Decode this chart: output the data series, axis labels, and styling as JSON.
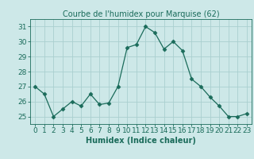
{
  "x": [
    0,
    1,
    2,
    3,
    4,
    5,
    6,
    7,
    8,
    9,
    10,
    11,
    12,
    13,
    14,
    15,
    16,
    17,
    18,
    19,
    20,
    21,
    22,
    23
  ],
  "y": [
    27,
    26.5,
    25,
    25.5,
    26,
    25.7,
    26.5,
    25.8,
    25.9,
    27,
    29.6,
    29.8,
    31.0,
    30.6,
    29.5,
    30.0,
    29.4,
    27.5,
    27.0,
    26.3,
    25.7,
    25.0,
    25.0,
    25.2
  ],
  "title": "Courbe de l'humidex pour Marquise (62)",
  "xlabel": "Humidex (Indice chaleur)",
  "ylabel": "",
  "ylim": [
    24.5,
    31.5
  ],
  "xlim": [
    -0.5,
    23.5
  ],
  "yticks": [
    25,
    26,
    27,
    28,
    29,
    30,
    31
  ],
  "xticks": [
    0,
    1,
    2,
    3,
    4,
    5,
    6,
    7,
    8,
    9,
    10,
    11,
    12,
    13,
    14,
    15,
    16,
    17,
    18,
    19,
    20,
    21,
    22,
    23
  ],
  "line_color": "#1a6b5a",
  "marker": "D",
  "marker_size": 2.5,
  "bg_color": "#cde8e8",
  "grid_color": "#aacfcf",
  "title_fontsize": 7,
  "label_fontsize": 7,
  "tick_fontsize": 6.5
}
